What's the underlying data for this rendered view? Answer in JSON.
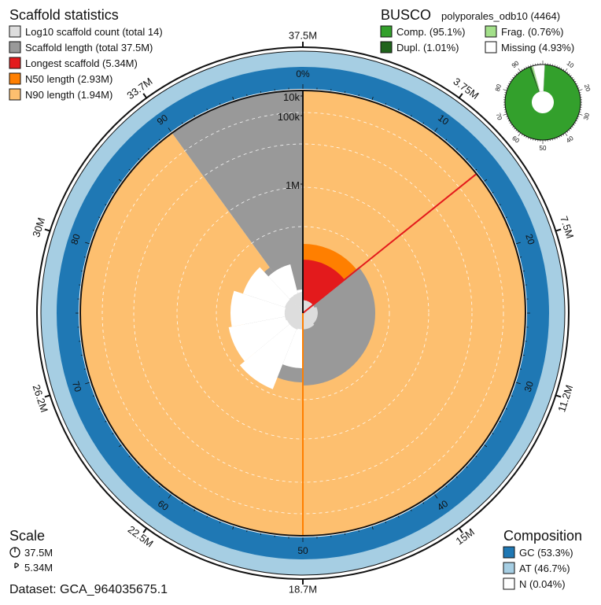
{
  "chart_data": {
    "type": "snail",
    "scaffold_stats": {
      "title": "Scaffold statistics",
      "legend": [
        {
          "label": "Log10 scaffold count (total 14)",
          "color": "#dddddd"
        },
        {
          "label": "Scaffold length (total 37.5M)",
          "color": "#999999"
        },
        {
          "label": "Longest scaffold (5.34M)",
          "color": "#e31a1c"
        },
        {
          "label": "N50 length (2.93M)",
          "color": "#ff7f00"
        },
        {
          "label": "N90 length (1.94M)",
          "color": "#fdbf6f"
        }
      ],
      "total_length": 37.5,
      "longest_scaffold": 5.34,
      "n50": 2.93,
      "n90": 1.94,
      "scaffold_count": 14,
      "scaffold_count_cumulative_pct": [
        0,
        18.3,
        37.8,
        55.1,
        68.5,
        80.2,
        88.0,
        92.4,
        95.4,
        97.6,
        98.9,
        99.5,
        99.8,
        99.95,
        100
      ],
      "scaffold_length_profile": [
        {
          "pct": 0,
          "length": 5.34
        },
        {
          "pct": 14.2,
          "length": 5.34
        },
        {
          "pct": 14.2,
          "length": 3.2
        },
        {
          "pct": 38.0,
          "length": 2.93
        },
        {
          "pct": 50.0,
          "length": 2.93
        },
        {
          "pct": 58.0,
          "length": 2.6
        },
        {
          "pct": 65.0,
          "length": 2.4
        },
        {
          "pct": 72.0,
          "length": 2.2
        },
        {
          "pct": 79.0,
          "length": 2.05
        },
        {
          "pct": 83.0,
          "length": 1.94
        },
        {
          "pct": 90.0,
          "length": 1.94
        },
        {
          "pct": 92.0,
          "length": 0.5
        },
        {
          "pct": 100,
          "length": 0.01
        }
      ]
    },
    "radial_axis_labels": [
      "10k",
      "100k",
      "1M"
    ],
    "percent_ticks": [
      "0%",
      "10",
      "20",
      "30",
      "40",
      "50",
      "60",
      "70",
      "80",
      "90"
    ],
    "length_ticks": [
      "37.5M",
      "3.75M",
      "7.5M",
      "11.2M",
      "15M",
      "18.7M",
      "22.5M",
      "26.2M",
      "30M",
      "33.7M"
    ],
    "busco": {
      "title": "BUSCO",
      "lineage": "polyporales_odb10 (4464)",
      "legend": [
        {
          "label": "Comp. (95.1%)",
          "color": "#33a02c"
        },
        {
          "label": "Frag. (0.76%)",
          "color": "#a3e08a"
        },
        {
          "label": "Dupl. (1.01%)",
          "color": "#20641c"
        },
        {
          "label": "Missing (4.93%)",
          "color": "#ffffff"
        }
      ],
      "complete_single": 94.09,
      "duplicated": 1.01,
      "fragmented": 0.76,
      "missing": 4.93,
      "ticks": [
        "10",
        "20",
        "30",
        "40",
        "50",
        "60",
        "70",
        "80",
        "90"
      ]
    },
    "composition": {
      "title": "Composition",
      "legend": [
        {
          "label": "GC (53.3%)",
          "color": "#1f78b4"
        },
        {
          "label": "AT (46.7%)",
          "color": "#a6cee3"
        },
        {
          "label": "N (0.04%)",
          "color": "#ffffff"
        }
      ],
      "gc": 53.3,
      "at": 46.7,
      "n": 0.04
    },
    "scale": {
      "title": "Scale",
      "items": [
        "37.5M",
        "5.34M"
      ]
    },
    "dataset": "Dataset: GCA_964035675.1"
  }
}
